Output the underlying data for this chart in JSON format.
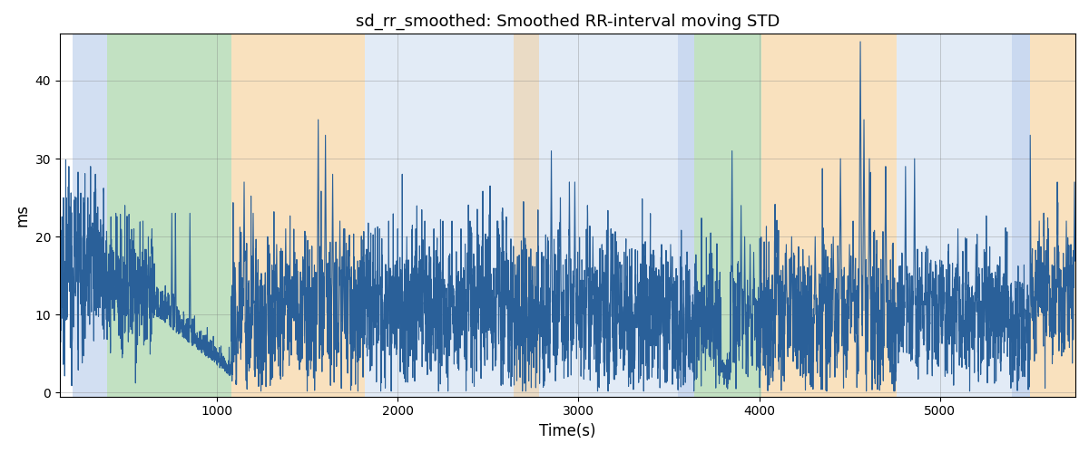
{
  "title": "sd_rr_smoothed: Smoothed RR-interval moving STD",
  "xlabel": "Time(s)",
  "ylabel": "ms",
  "xlim": [
    130,
    5750
  ],
  "ylim": [
    -0.5,
    46
  ],
  "yticks": [
    0,
    10,
    20,
    30,
    40
  ],
  "line_color": "#2a6099",
  "line_width": 0.8,
  "background_color": "#ffffff",
  "colored_bands": [
    {
      "xmin": 200,
      "xmax": 390,
      "color": "#aec6e8",
      "alpha": 0.55
    },
    {
      "xmin": 390,
      "xmax": 1080,
      "color": "#90c990",
      "alpha": 0.55
    },
    {
      "xmin": 1080,
      "xmax": 1820,
      "color": "#f5c98a",
      "alpha": 0.55
    },
    {
      "xmin": 1820,
      "xmax": 3550,
      "color": "#aec6e8",
      "alpha": 0.35
    },
    {
      "xmin": 2640,
      "xmax": 2780,
      "color": "#f5c98a",
      "alpha": 0.45
    },
    {
      "xmin": 3550,
      "xmax": 3640,
      "color": "#aec6e8",
      "alpha": 0.65
    },
    {
      "xmin": 3640,
      "xmax": 4010,
      "color": "#90c990",
      "alpha": 0.55
    },
    {
      "xmin": 4010,
      "xmax": 4760,
      "color": "#f5c98a",
      "alpha": 0.55
    },
    {
      "xmin": 4760,
      "xmax": 5400,
      "color": "#aec6e8",
      "alpha": 0.35
    },
    {
      "xmin": 5400,
      "xmax": 5500,
      "color": "#aec6e8",
      "alpha": 0.65
    },
    {
      "xmin": 5500,
      "xmax": 5750,
      "color": "#f5c98a",
      "alpha": 0.55
    }
  ],
  "seed": 7,
  "n_points": 5750,
  "dt": 1
}
